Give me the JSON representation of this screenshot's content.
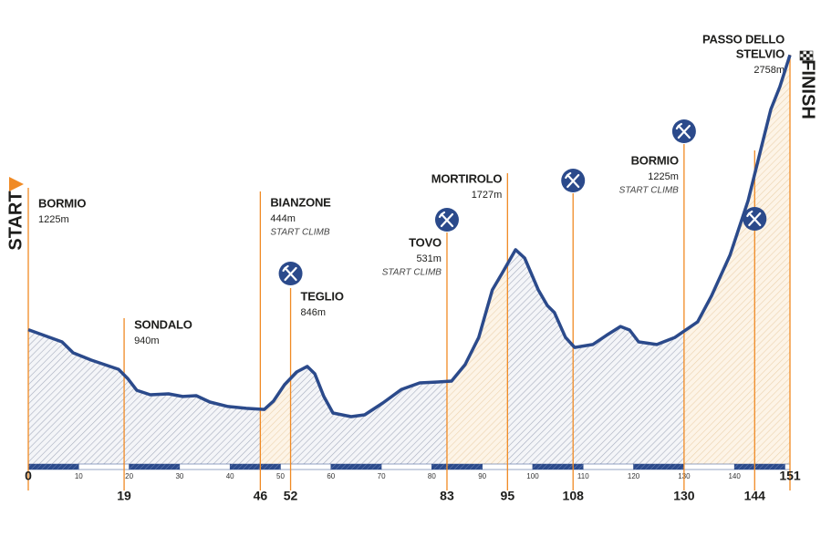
{
  "chart_data": {
    "type": "area",
    "start_label": "START",
    "finish_label": "FINISH",
    "x": [
      0,
      6.7,
      8.9,
      12.5,
      17.9,
      19.7,
      21.5,
      24.2,
      27.8,
      30.6,
      33.3,
      36.0,
      39.6,
      43.2,
      46.8,
      48.6,
      50.8,
      53.2,
      55.3,
      56.8,
      58.6,
      60.4,
      64.0,
      66.7,
      70.3,
      74.0,
      77.6,
      81.2,
      83.9,
      86.6,
      89.3,
      92.0,
      93.9,
      96.6,
      98.4,
      101.1,
      102.9,
      104.3,
      106.5,
      108.3,
      111.9,
      114.6,
      117.4,
      119.2,
      121.0,
      124.6,
      128.2,
      132.7,
      135.4,
      139.1,
      142.7,
      145.4,
      147.2,
      149.0,
      151
    ],
    "values": [
      1225,
      1157,
      1096,
      1055,
      1004,
      953,
      887,
      862,
      867,
      852,
      857,
      821,
      796,
      786,
      780,
      826,
      918,
      989,
      1020,
      979,
      852,
      760,
      740,
      750,
      816,
      892,
      928,
      933,
      938,
      1030,
      1182,
      1447,
      1538,
      1671,
      1625,
      1447,
      1360,
      1320,
      1182,
      1126,
      1142,
      1193,
      1243,
      1223,
      1157,
      1142,
      1182,
      1269,
      1411,
      1640,
      1945,
      2251,
      2454,
      2581,
      2758
    ],
    "color": "#2b4a8b",
    "xlim": [
      0,
      151
    ],
    "ylim": [
      460,
      2800
    ],
    "xticks": [
      10,
      20,
      30,
      40,
      50,
      60,
      70,
      80,
      90,
      100,
      110,
      120,
      130,
      140
    ],
    "climbs": [
      {
        "from": 46,
        "to": 52
      },
      {
        "from": 83,
        "to": 95
      },
      {
        "from": 130,
        "to": 151
      }
    ],
    "waypoints": [
      {
        "km": 0,
        "name": [
          "BORMIO"
        ],
        "elevation": "1225m"
      },
      {
        "km": 19,
        "name": [
          "SONDALO"
        ],
        "elevation": "940m"
      },
      {
        "km": 46,
        "name": [
          "BIANZONE"
        ],
        "elevation": "444m",
        "note": "START CLIMB"
      },
      {
        "km": 52,
        "name": [
          "TEGLIO"
        ],
        "elevation": "846m",
        "feed": true
      },
      {
        "km": 83,
        "name": [
          "TOVO"
        ],
        "elevation": "531m",
        "note": "START CLIMB",
        "feed": true
      },
      {
        "km": 95,
        "name": [
          "MORTIROLO"
        ],
        "elevation": "1727m"
      },
      {
        "km": 108,
        "feed": true
      },
      {
        "km": 130,
        "name": [
          "BORMIO"
        ],
        "elevation": "1225m",
        "note": "START CLIMB",
        "feed": true
      },
      {
        "km": 144,
        "feed": true
      },
      {
        "km": 151,
        "name": [
          "PASSO DELLO",
          "STELVIO"
        ],
        "elevation": "2758m"
      }
    ]
  }
}
